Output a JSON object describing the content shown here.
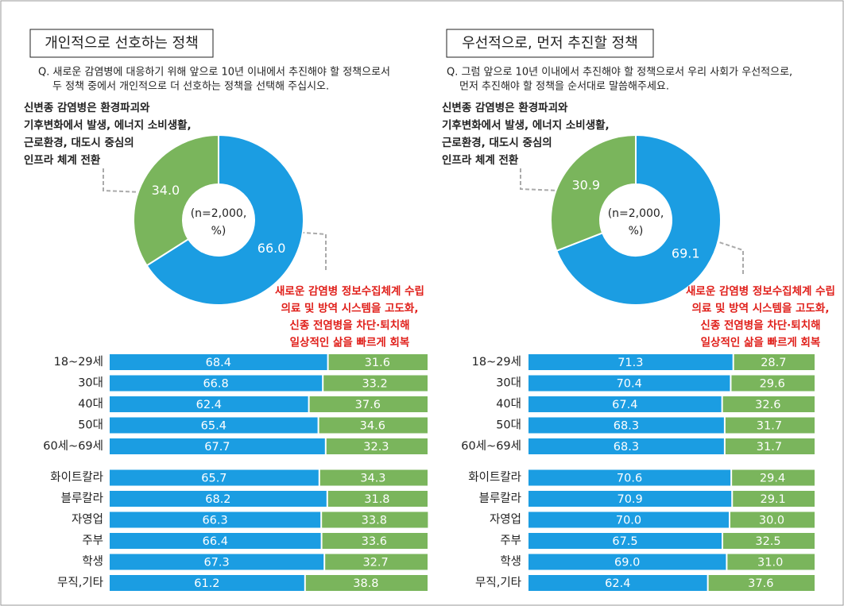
{
  "chart_data": [
    {
      "type": "pie",
      "title": "개인적으로 선호하는 정책",
      "subtitle": [
        "Q. 새로운 감염병에 대응하기 위해 앞으로 10년 이내에서 추진해야 할 정책으로서",
        "두 정책 중에서 개인적으로 더 선호하는 정책을 선택해 주십시오."
      ],
      "center_label": [
        "(n=2,000,",
        "%)"
      ],
      "values": [
        66.0,
        34.0
      ],
      "value_labels": [
        "66.0",
        "34.0"
      ],
      "colors": [
        "#1b9de2",
        "#7ab55c"
      ],
      "annotations": [
        [
          "신변종 감염병은 환경파괴와",
          "기후변화에서 발생, 에너지 소비생활,",
          "근로환경, 대도시 중심의",
          "인프라 체계 전환"
        ],
        [
          "새로운 감염병 정보수집체계 수립",
          "의료 및 방역 시스템을 고도화,",
          "신종 전염병을 차단·퇴치해",
          "일상적인 삶을 빠르게 회복"
        ]
      ]
    },
    {
      "type": "stacked_bar",
      "categories": [
        "18~29세",
        "30대",
        "40대",
        "50대",
        "60세~69세",
        "화이트칼라",
        "블루칼라",
        "자영업",
        "주부",
        "학생",
        "무직,기타"
      ],
      "xlim": [
        0,
        100
      ],
      "series": [
        {
          "color": "#1b9de2",
          "values": [
            68.4,
            66.8,
            62.4,
            65.4,
            67.7,
            65.7,
            68.2,
            66.3,
            66.4,
            67.3,
            61.2
          ],
          "value_labels": [
            "68.4",
            "66.8",
            "62.4",
            "65.4",
            "67.7",
            "65.7",
            "68.2",
            "66.3",
            "66.4",
            "67.3",
            "61.2"
          ]
        },
        {
          "color": "#7ab55c",
          "values": [
            31.6,
            33.2,
            37.6,
            34.6,
            32.3,
            34.3,
            31.8,
            33.8,
            33.6,
            32.7,
            38.8
          ],
          "value_labels": [
            "31.6",
            "33.2",
            "37.6",
            "34.6",
            "32.3",
            "34.3",
            "31.8",
            "33.8",
            "33.6",
            "32.7",
            "38.8"
          ]
        }
      ]
    },
    {
      "type": "pie",
      "title": "우선적으로, 먼저 추진할 정책",
      "subtitle": [
        "Q. 그럼 앞으로 10년 이내에서 추진해야 할 정책으로서 우리 사회가 우선적으로,",
        "먼저 추진해야 할 정책을 순서대로 말씀해주세요."
      ],
      "center_label": [
        "(n=2,000,",
        "%)"
      ],
      "values": [
        69.1,
        30.9
      ],
      "value_labels": [
        "69.1",
        "30.9"
      ],
      "colors": [
        "#1b9de2",
        "#7ab55c"
      ],
      "annotations": [
        [
          "신변종 감염병은 환경파괴와",
          "기후변화에서 발생, 에너지 소비생활,",
          "근로환경, 대도시 중심의",
          "인프라 체계 전환"
        ],
        [
          "새로운 감염병 정보수집체계 수립",
          "의료 및 방역 시스템을 고도화,",
          "신종 전염병을 차단·퇴치해",
          "일상적인 삶을 빠르게 회복"
        ]
      ]
    },
    {
      "type": "stacked_bar",
      "categories": [
        "18~29세",
        "30대",
        "40대",
        "50대",
        "60세~69세",
        "화이트칼라",
        "블루칼라",
        "자영업",
        "주부",
        "학생",
        "무직,기타"
      ],
      "xlim": [
        0,
        100
      ],
      "series": [
        {
          "color": "#1b9de2",
          "values": [
            71.3,
            70.4,
            67.4,
            68.3,
            68.3,
            70.6,
            70.9,
            70.0,
            67.5,
            69.0,
            62.4
          ],
          "value_labels": [
            "71.3",
            "70.4",
            "67.4",
            "68.3",
            "68.3",
            "70.6",
            "70.9",
            "70.0",
            "67.5",
            "69.0",
            "62.4"
          ]
        },
        {
          "color": "#7ab55c",
          "values": [
            28.7,
            29.6,
            32.6,
            31.7,
            31.7,
            29.4,
            29.1,
            30.0,
            32.5,
            31.0,
            37.6
          ],
          "value_labels": [
            "28.7",
            "29.6",
            "32.6",
            "31.7",
            "31.7",
            "29.4",
            "29.1",
            "30.0",
            "32.5",
            "31.0",
            "37.6"
          ]
        }
      ]
    }
  ]
}
